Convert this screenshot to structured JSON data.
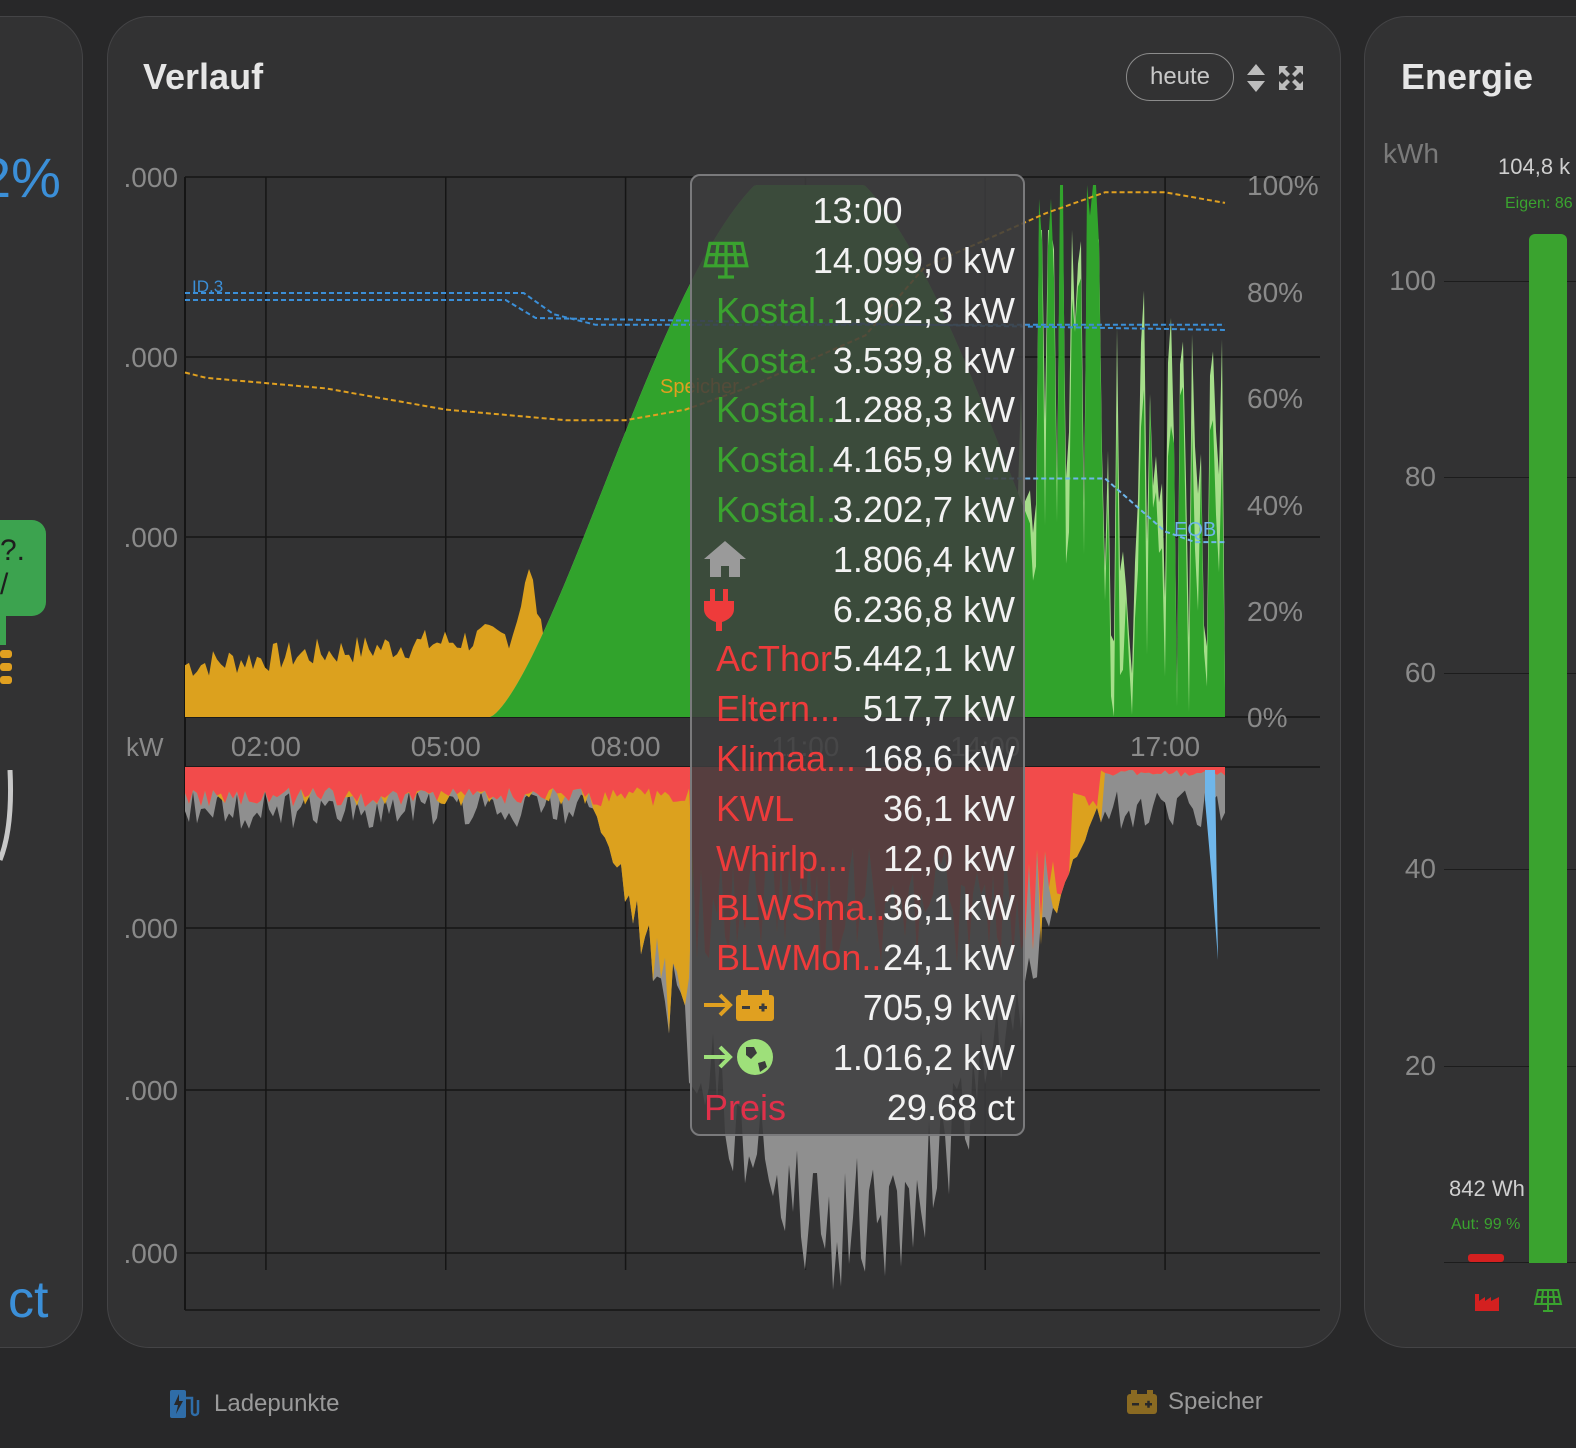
{
  "left_card": {
    "percent": "2%",
    "badge_line1": "?.",
    "badge_line2": "/",
    "unit": "ct"
  },
  "verlauf": {
    "title": "Verlauf",
    "period_button": "heute",
    "icons": [
      "sort-arrows-icon",
      "expand-arrows-icon"
    ]
  },
  "chart_data": {
    "type": "area",
    "top_panel": {
      "y_tick_labels": [
        ".000",
        ".000",
        ".000"
      ],
      "y2_tick_labels": [
        "100%",
        "80%",
        "60%",
        "40%",
        "20%",
        "0%"
      ],
      "x_tick_labels": [
        "02:00",
        "05:00",
        "08:00",
        "11:00",
        "14:00",
        "17:00"
      ],
      "unit_label": "kW",
      "soc_labels": [
        "ID.3",
        "Speicher",
        "EQB"
      ],
      "series": [
        {
          "name": "ID.3",
          "style": "dashed",
          "color": "#3b8fd8",
          "x": [
            0,
            6.3,
            6.8,
            7.5,
            8.5,
            12,
            14,
            17,
            18
          ],
          "soc": [
            80,
            80,
            76,
            74,
            74,
            74,
            74,
            74,
            74
          ]
        },
        {
          "name": "Speicher",
          "style": "dashed",
          "color": "#e0a020",
          "x": [
            0,
            1,
            2,
            3,
            4,
            5,
            6,
            7,
            8,
            9,
            10,
            12,
            13,
            14,
            15,
            16,
            17,
            18
          ],
          "soc": [
            65,
            64,
            63,
            62,
            60,
            58,
            57,
            56,
            56,
            58,
            62,
            72,
            85,
            90,
            95,
            99,
            99,
            97
          ]
        },
        {
          "name": "EQB",
          "style": "dashed",
          "color": "#6fb6ea",
          "x": [
            14,
            15,
            16,
            17,
            17.5,
            18
          ],
          "soc": [
            45,
            45,
            45,
            35,
            33,
            33
          ]
        }
      ]
    },
    "bottom_panel": {
      "y_tick_labels": [
        ".000",
        ".000",
        ".000"
      ],
      "layers": [
        "Haus",
        "Wallbox",
        "Speicher laden",
        "Netzeinspeisung"
      ]
    }
  },
  "tooltip": {
    "time": "13:00",
    "rows": [
      {
        "icon": "solar-panel-icon",
        "label": "",
        "value": "14.099,0 kW",
        "color": "#3aa32f"
      },
      {
        "label": "Kostal..",
        "value": "1.902,3 kW",
        "color": "#3aa32f"
      },
      {
        "label": "Kosta.",
        "value": "3.539,8 kW",
        "color": "#3aa32f"
      },
      {
        "label": "Kostal..",
        "value": "1.288,3 kW",
        "color": "#3aa32f"
      },
      {
        "label": "Kostal..",
        "value": "4.165,9 kW",
        "color": "#3aa32f"
      },
      {
        "label": "Kostal..",
        "value": "3.202,7 kW",
        "color": "#3aa32f"
      },
      {
        "icon": "house-icon",
        "label": "",
        "value": "1.806,4 kW",
        "color": "#9a9a9a"
      },
      {
        "icon": "plug-icon",
        "label": "",
        "value": "6.236,8 kW",
        "color": "#ee3b3b"
      },
      {
        "label": "AcThor",
        "value": "5.442,1 kW",
        "color": "#ee3b3b"
      },
      {
        "label": "Eltern...",
        "value": "517,7 kW",
        "color": "#ee3b3b"
      },
      {
        "label": "Klimaa...",
        "value": "168,6 kW",
        "color": "#ee3b3b"
      },
      {
        "label": "KWL",
        "value": "36,1 kW",
        "color": "#ee3b3b"
      },
      {
        "label": "Whirlp...",
        "value": "12,0 kW",
        "color": "#ee3b3b"
      },
      {
        "label": "BLWSma..",
        "value": "36,1 kW",
        "color": "#ee3b3b"
      },
      {
        "label": "BLWMon..",
        "value": "24,1 kW",
        "color": "#ee3b3b"
      },
      {
        "icon": "battery-charge-icon",
        "label": "",
        "value": "705,9 kW",
        "color": "#e0a020"
      },
      {
        "icon": "grid-export-icon",
        "label": "",
        "value": "1.016,2 kW",
        "color": "#9ee07a"
      },
      {
        "label": "Preis",
        "value": "29.68 ct",
        "color": "#e0304a"
      }
    ]
  },
  "energie": {
    "title": "Energie",
    "unit": "kWh",
    "top_value": "104,8 k",
    "top_sub": "Eigen: 86",
    "ticks": [
      "100",
      "80",
      "60",
      "40",
      "20"
    ],
    "bar_label": "842 Wh",
    "bar_sub": "Aut: 99 %",
    "bar_colors": {
      "solar": "#3aa32f",
      "consumption": "#d42020"
    }
  },
  "footer": {
    "left_label": "Ladepunkte",
    "right_label": "Speicher"
  }
}
